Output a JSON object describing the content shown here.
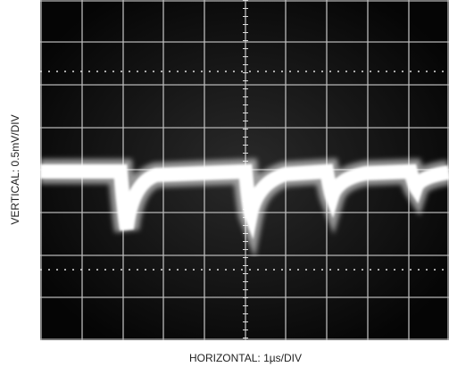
{
  "labels": {
    "vertical": "VERTICAL: 0.5mV/DIV",
    "horizontal": "HORIZONTAL: 1µs/DIV"
  }
}
